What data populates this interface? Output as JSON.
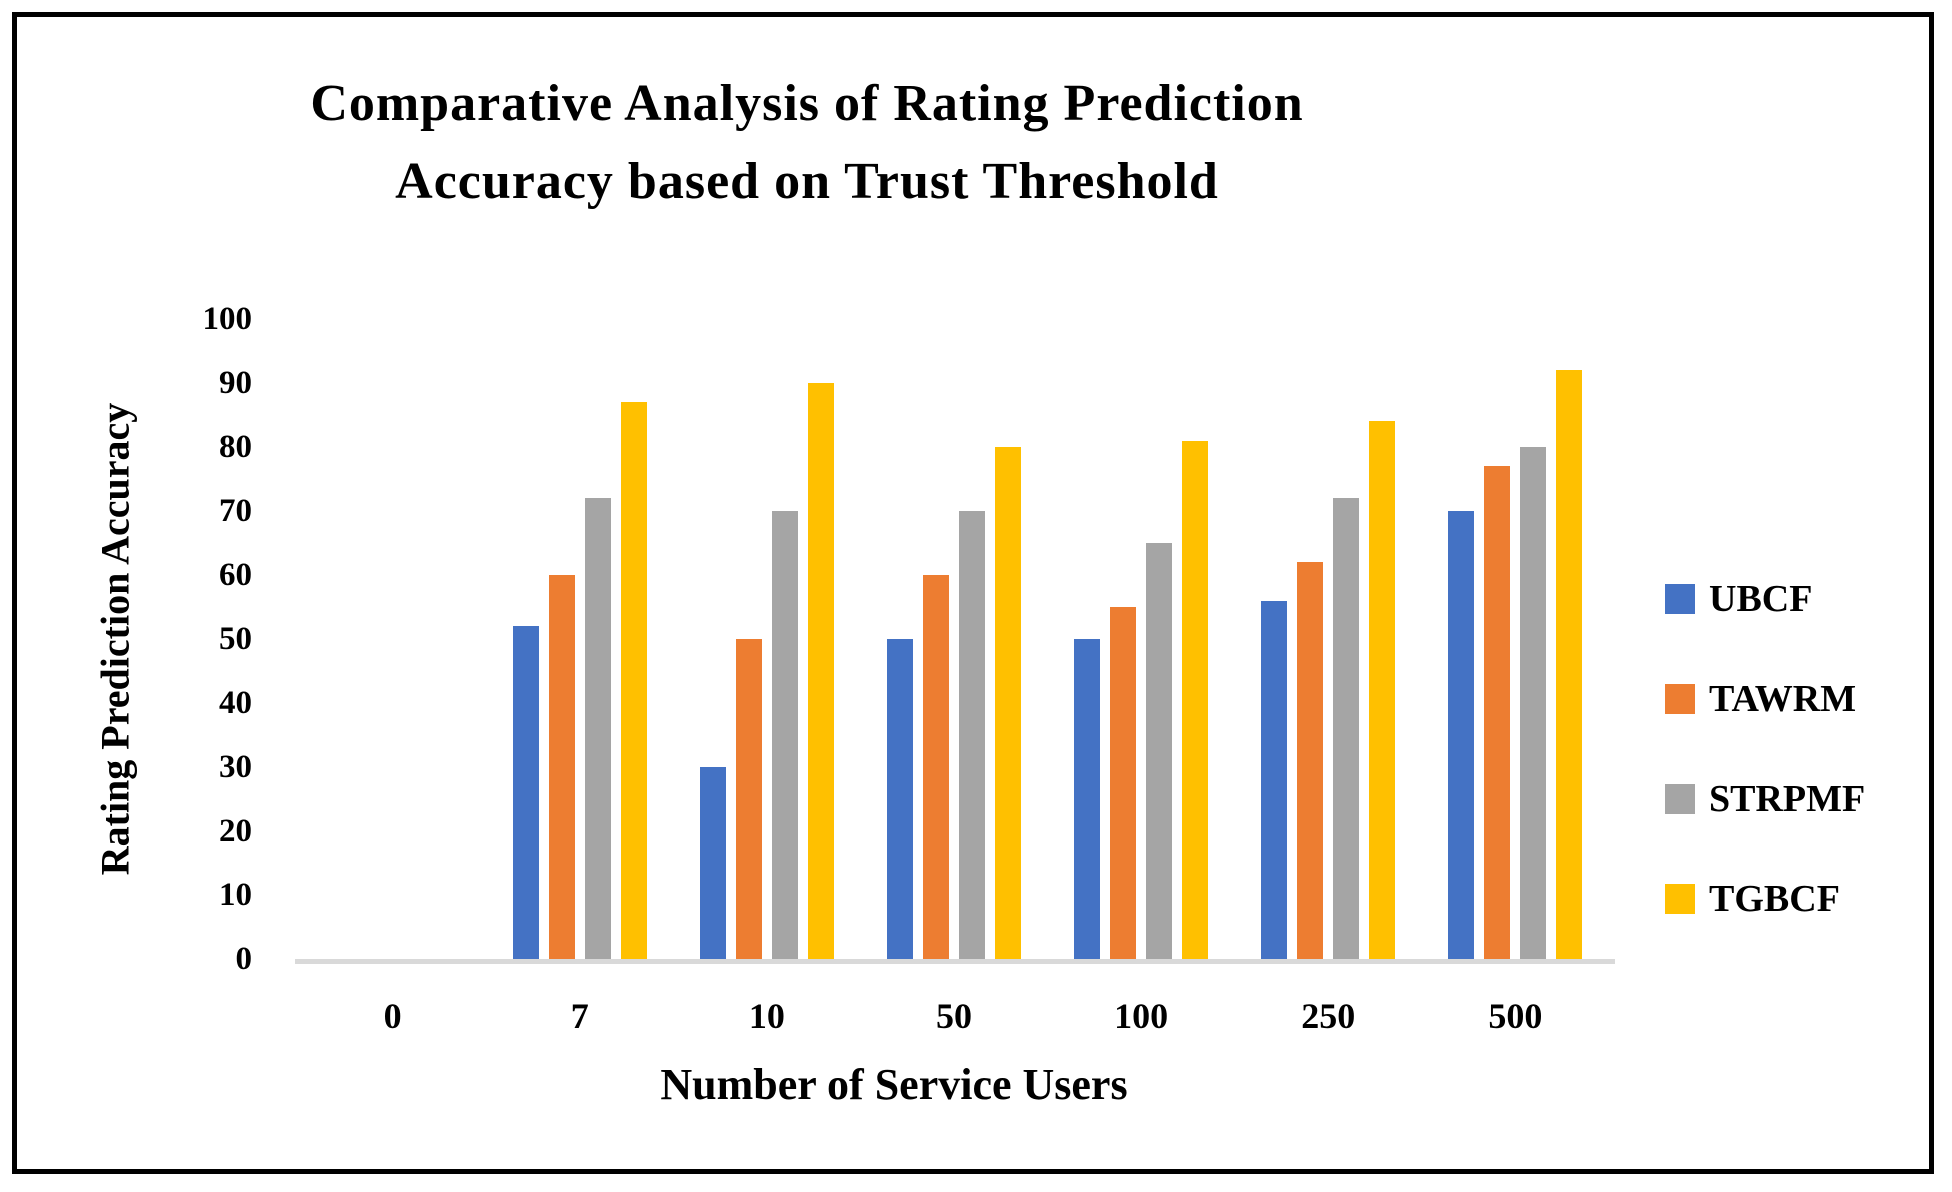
{
  "chart_data": {
    "type": "bar",
    "title": "Comparative Analysis of Rating Prediction Accuracy based on Trust Threshold",
    "title_lines": [
      "Comparative Analysis of Rating Prediction",
      "Accuracy based on Trust Threshold"
    ],
    "xlabel": "Number of Service Users",
    "ylabel": "Rating Prediction Accuracy",
    "categories": [
      "0",
      "7",
      "10",
      "50",
      "100",
      "250",
      "500"
    ],
    "series": [
      {
        "name": "UBCF",
        "color": "#4472C4",
        "values": [
          0,
          52,
          30,
          50,
          50,
          56,
          70
        ]
      },
      {
        "name": "TAWRM",
        "color": "#ED7D31",
        "values": [
          0,
          60,
          50,
          60,
          55,
          62,
          77
        ]
      },
      {
        "name": "STRPMF",
        "color": "#A5A5A5",
        "values": [
          0,
          72,
          70,
          70,
          65,
          72,
          80
        ]
      },
      {
        "name": "TGBCF",
        "color": "#FFC000",
        "values": [
          0,
          87,
          90,
          80,
          81,
          84,
          92
        ]
      }
    ],
    "ylim": [
      0,
      100
    ],
    "yticks": [
      100,
      90,
      80,
      70,
      60,
      50,
      40,
      30,
      20,
      10,
      0
    ],
    "grid": false,
    "legend_position": "right",
    "axis_line_color": "#D9D9D9",
    "background_color": "#FFFFFF",
    "border_color": "#000000"
  }
}
